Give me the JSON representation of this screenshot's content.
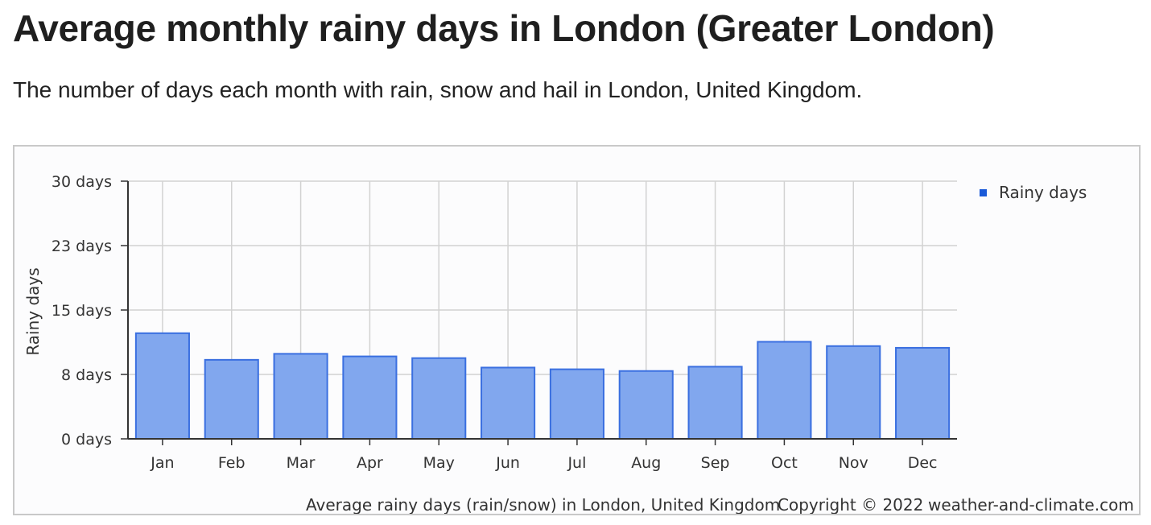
{
  "page": {
    "title": "Average monthly rainy days in London (Greater London)",
    "subtitle": "The number of days each month with rain, snow and hail in London, United Kingdom."
  },
  "colors": {
    "bar_fill": "#81a7ee",
    "bar_stroke": "#3a6fe0",
    "legend_marker": "#1a5ad8",
    "grid": "#d2d2d2",
    "axis": "#333333"
  },
  "chart_data": {
    "type": "bar",
    "categories": [
      "Jan",
      "Feb",
      "Mar",
      "Apr",
      "May",
      "Jun",
      "Jul",
      "Aug",
      "Sep",
      "Oct",
      "Nov",
      "Dec"
    ],
    "series": [
      {
        "name": "Rainy days",
        "values": [
          12.3,
          9.2,
          9.9,
          9.6,
          9.4,
          8.3,
          8.1,
          7.9,
          8.4,
          11.3,
          10.8,
          10.6
        ]
      }
    ],
    "yticks": [
      "0 days",
      "8 days",
      "15 days",
      "23 days",
      "30 days"
    ],
    "ylim": [
      0,
      30
    ],
    "ylabel": "Rainy days",
    "xlabel": "",
    "grid": true,
    "legend": "top-right",
    "footer": {
      "caption": "Average rainy days (rain/snow) in London, United Kingdom",
      "copyright": "Copyright © 2022",
      "site": "weather-and-climate.com"
    }
  }
}
